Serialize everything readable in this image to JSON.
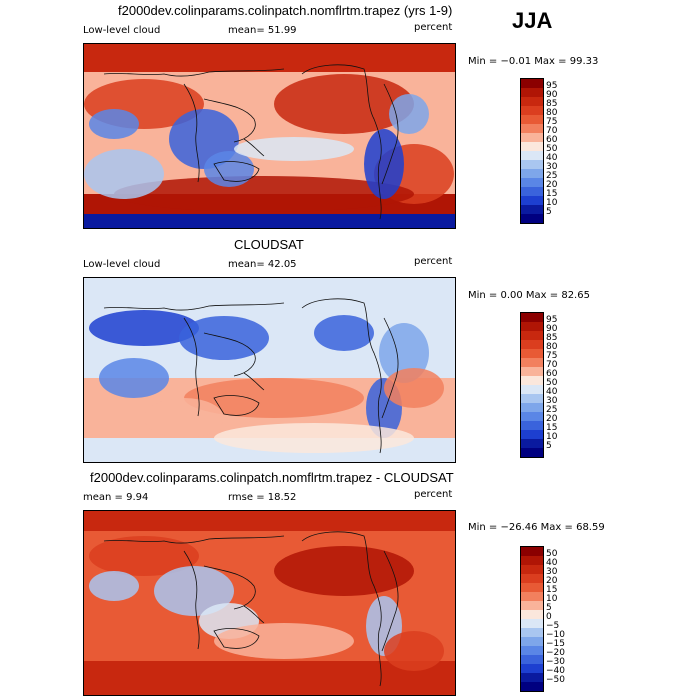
{
  "season": "JJA",
  "panels": [
    {
      "title": "f2000dev.colinparams.colinpatch.nomflrtm.trapez (yrs 1-9)",
      "left_label": "Low-level cloud",
      "mid_label": "mean=  51.99",
      "unit": "percent",
      "minmax": "Min =  −0.01 Max =  99.33",
      "levels": [
        "95",
        "90",
        "85",
        "80",
        "75",
        "70",
        "60",
        "50",
        "40",
        "30",
        "25",
        "20",
        "15",
        "10",
        "5"
      ],
      "colors": [
        "#8b0000",
        "#b01505",
        "#c8280f",
        "#db3e1f",
        "#e85a35",
        "#f2805e",
        "#f9b39a",
        "#fbe7dc",
        "#dbe7f6",
        "#a9c6f0",
        "#7ea6ea",
        "#5a86e6",
        "#3a63dc",
        "#1d3fd0",
        "#0a1a9f",
        "#000080"
      ]
    },
    {
      "title": "CLOUDSAT",
      "left_label": "Low-level cloud",
      "mid_label": "mean=  42.05",
      "unit": "percent",
      "minmax": "Min =   0.00 Max =  82.65",
      "levels": [
        "95",
        "90",
        "85",
        "80",
        "75",
        "70",
        "60",
        "50",
        "40",
        "30",
        "25",
        "20",
        "15",
        "10",
        "5"
      ],
      "colors": [
        "#8b0000",
        "#b01505",
        "#c8280f",
        "#db3e1f",
        "#e85a35",
        "#f2805e",
        "#f9b39a",
        "#fbe7dc",
        "#dbe7f6",
        "#a9c6f0",
        "#7ea6ea",
        "#5a86e6",
        "#3a63dc",
        "#1d3fd0",
        "#0a1a9f",
        "#000080"
      ]
    },
    {
      "title": "f2000dev.colinparams.colinpatch.nomflrtm.trapez - CLOUDSAT",
      "left_label": "mean =    9.94",
      "mid_label": "rmse =   18.52",
      "unit": "percent",
      "minmax": "Min = −26.46 Max =  68.59",
      "levels": [
        "50",
        "40",
        "30",
        "20",
        "15",
        "10",
        "5",
        "0",
        "−5",
        "−10",
        "−15",
        "−20",
        "−30",
        "−40",
        "−50"
      ],
      "colors": [
        "#8b0000",
        "#b01505",
        "#c8280f",
        "#db3e1f",
        "#e85a35",
        "#f2805e",
        "#f9b39a",
        "#fbe7dc",
        "#dbe7f6",
        "#a9c6f0",
        "#7ea6ea",
        "#5a86e6",
        "#3a63dc",
        "#1d3fd0",
        "#0a1a9f",
        "#000080"
      ]
    }
  ]
}
